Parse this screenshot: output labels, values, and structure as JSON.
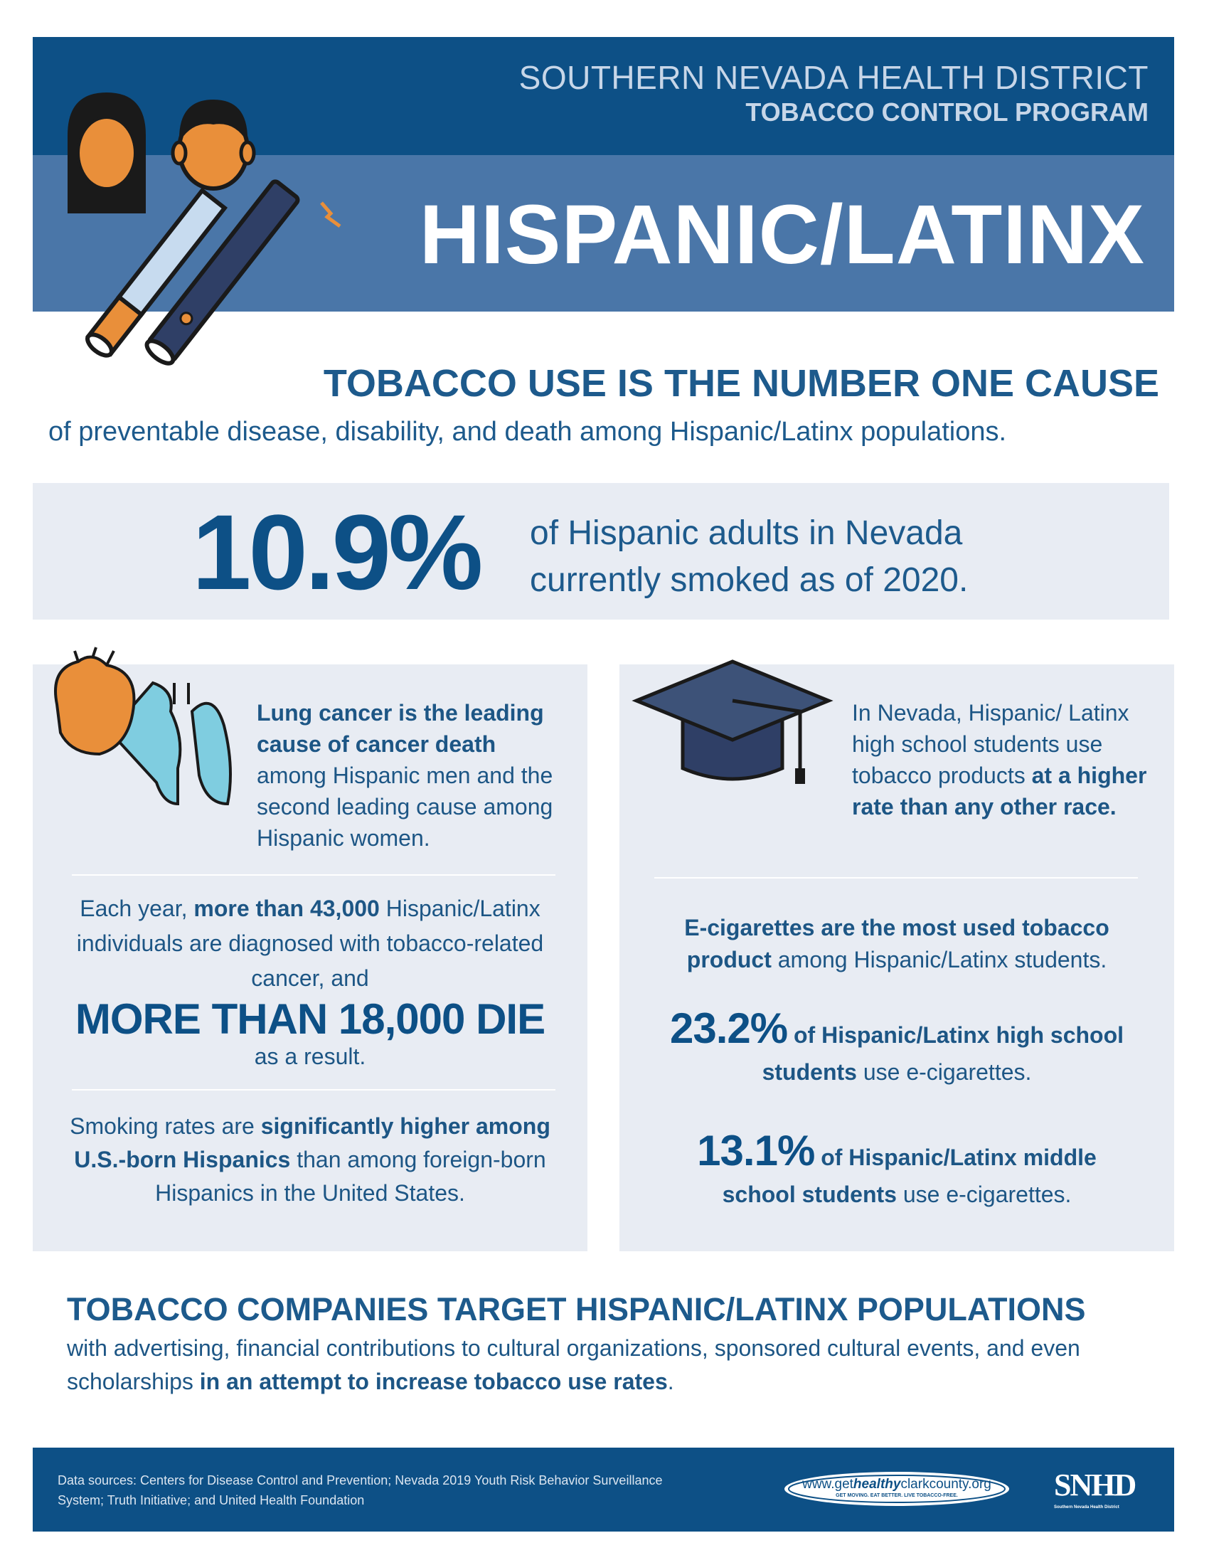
{
  "header": {
    "organization": "SOUTHERN NEVADA HEALTH DISTRICT",
    "program": "TOBACCO CONTROL PROGRAM",
    "title": "HISPANIC/LATINX"
  },
  "intro": {
    "headline": "TOBACCO USE IS THE NUMBER ONE CAUSE",
    "text": "of preventable disease, disability, and death among Hispanic/Latinx populations."
  },
  "highlight": {
    "stat": "10.9%",
    "lines": [
      "of Hispanic adults in Nevada",
      "currently smoked as of 2020."
    ]
  },
  "left_panel": {
    "lung_cancer": [
      {
        "text": "Lung cancer is the leading cause of cancer death",
        "bold": true
      },
      {
        "text": " among Hispanic men and the second leading cause among Hispanic women.",
        "bold": false
      }
    ],
    "diagnosed": [
      {
        "text": "Each year, ",
        "bold": false
      },
      {
        "text": "more than 43,000",
        "bold": true
      },
      {
        "text": " Hispanic/Latinx individuals are diagnosed with tobacco-related cancer, and",
        "bold": false
      }
    ],
    "deaths": "MORE THAN 18,000 DIE",
    "deaths_note": "as a result.",
    "smoking_rates": [
      {
        "text": "Smoking rates are ",
        "bold": false
      },
      {
        "text": "significantly higher among U.S.-born Hispanics",
        "bold": true
      },
      {
        "text": " than among foreign-born Hispanics in the United States.",
        "bold": false
      }
    ]
  },
  "right_panel": {
    "students": [
      {
        "text": "In Nevada, Hispanic/ Latinx high school students use tobacco products ",
        "bold": false
      },
      {
        "text": "at a higher rate than any other race.",
        "bold": true
      }
    ],
    "e_cigarettes": [
      {
        "text": "E-cigarettes are the most used tobacco product",
        "bold": true
      },
      {
        "text": " among Hispanic/Latinx students.",
        "bold": false
      }
    ],
    "stats": [
      {
        "value": "23.2%",
        "runs": [
          {
            "text": " of Hispanic/Latinx high school students",
            "bold": true
          },
          {
            "text": " use e-cigarettes.",
            "bold": false
          }
        ]
      },
      {
        "value": "13.1%",
        "runs": [
          {
            "text": " of Hispanic/Latinx middle school students",
            "bold": true
          },
          {
            "text": " use e-cigarettes.",
            "bold": false
          }
        ]
      }
    ]
  },
  "targeting": {
    "headline": "TOBACCO COMPANIES TARGET HISPANIC/LATINX POPULATIONS",
    "text": [
      {
        "text": "with advertising, financial contributions to cultural organizations, sponsored cultural events, and even scholarships ",
        "bold": false
      },
      {
        "text": "in an attempt to increase tobacco use rates",
        "bold": true
      },
      {
        "text": ".",
        "bold": false
      }
    ]
  },
  "footer": {
    "sources": "Data sources: Centers for Disease Control and Prevention; Nevada 2019 Youth Risk Behavior Surveillance System; Truth Initiative; and United Health Foundation",
    "logo_url": {
      "prefix": "www.get",
      "bold": "healthy",
      "suffix": "clarkcounty.org"
    },
    "logo_tagline": "GET MOVING. EAT BETTER. LIVE TOBACCO-FREE.",
    "snhd": "SNHD",
    "snhd_name": "Southern Nevada Health District"
  }
}
